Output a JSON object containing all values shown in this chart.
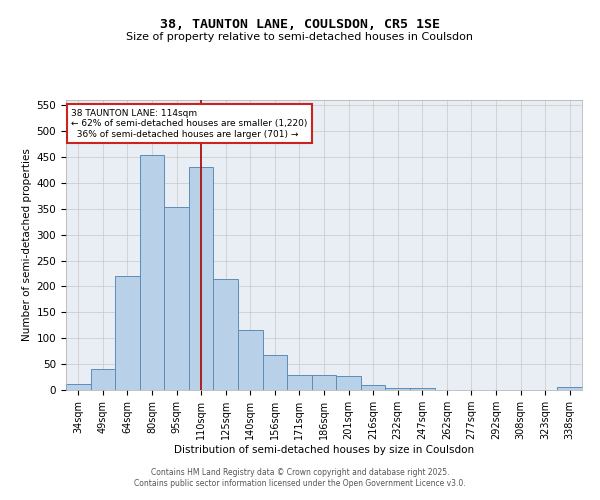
{
  "title1": "38, TAUNTON LANE, COULSDON, CR5 1SE",
  "title2": "Size of property relative to semi-detached houses in Coulsdon",
  "xlabel": "Distribution of semi-detached houses by size in Coulsdon",
  "ylabel": "Number of semi-detached properties",
  "footer1": "Contains HM Land Registry data © Crown copyright and database right 2025.",
  "footer2": "Contains public sector information licensed under the Open Government Licence v3.0.",
  "bins": [
    "34sqm",
    "49sqm",
    "64sqm",
    "80sqm",
    "95sqm",
    "110sqm",
    "125sqm",
    "140sqm",
    "156sqm",
    "171sqm",
    "186sqm",
    "201sqm",
    "216sqm",
    "232sqm",
    "247sqm",
    "262sqm",
    "277sqm",
    "292sqm",
    "308sqm",
    "323sqm",
    "338sqm"
  ],
  "values": [
    12,
    40,
    220,
    453,
    353,
    430,
    215,
    115,
    68,
    29,
    29,
    27,
    9,
    4,
    3,
    0,
    0,
    0,
    0,
    0,
    5
  ],
  "bar_color": "#b8d0e8",
  "bar_edge_color": "#5b8db8",
  "property_bin_index": 5,
  "property_label": "38 TAUNTON LANE: 114sqm",
  "pct_smaller": 62,
  "count_smaller": 1220,
  "pct_larger": 36,
  "count_larger": 701,
  "vline_color": "#aa1111",
  "annotation_box_color": "#cc2222",
  "ylim": [
    0,
    560
  ],
  "yticks": [
    0,
    50,
    100,
    150,
    200,
    250,
    300,
    350,
    400,
    450,
    500,
    550
  ],
  "bg_color": "#e8eef4",
  "grid_color": "#c8c8c8"
}
